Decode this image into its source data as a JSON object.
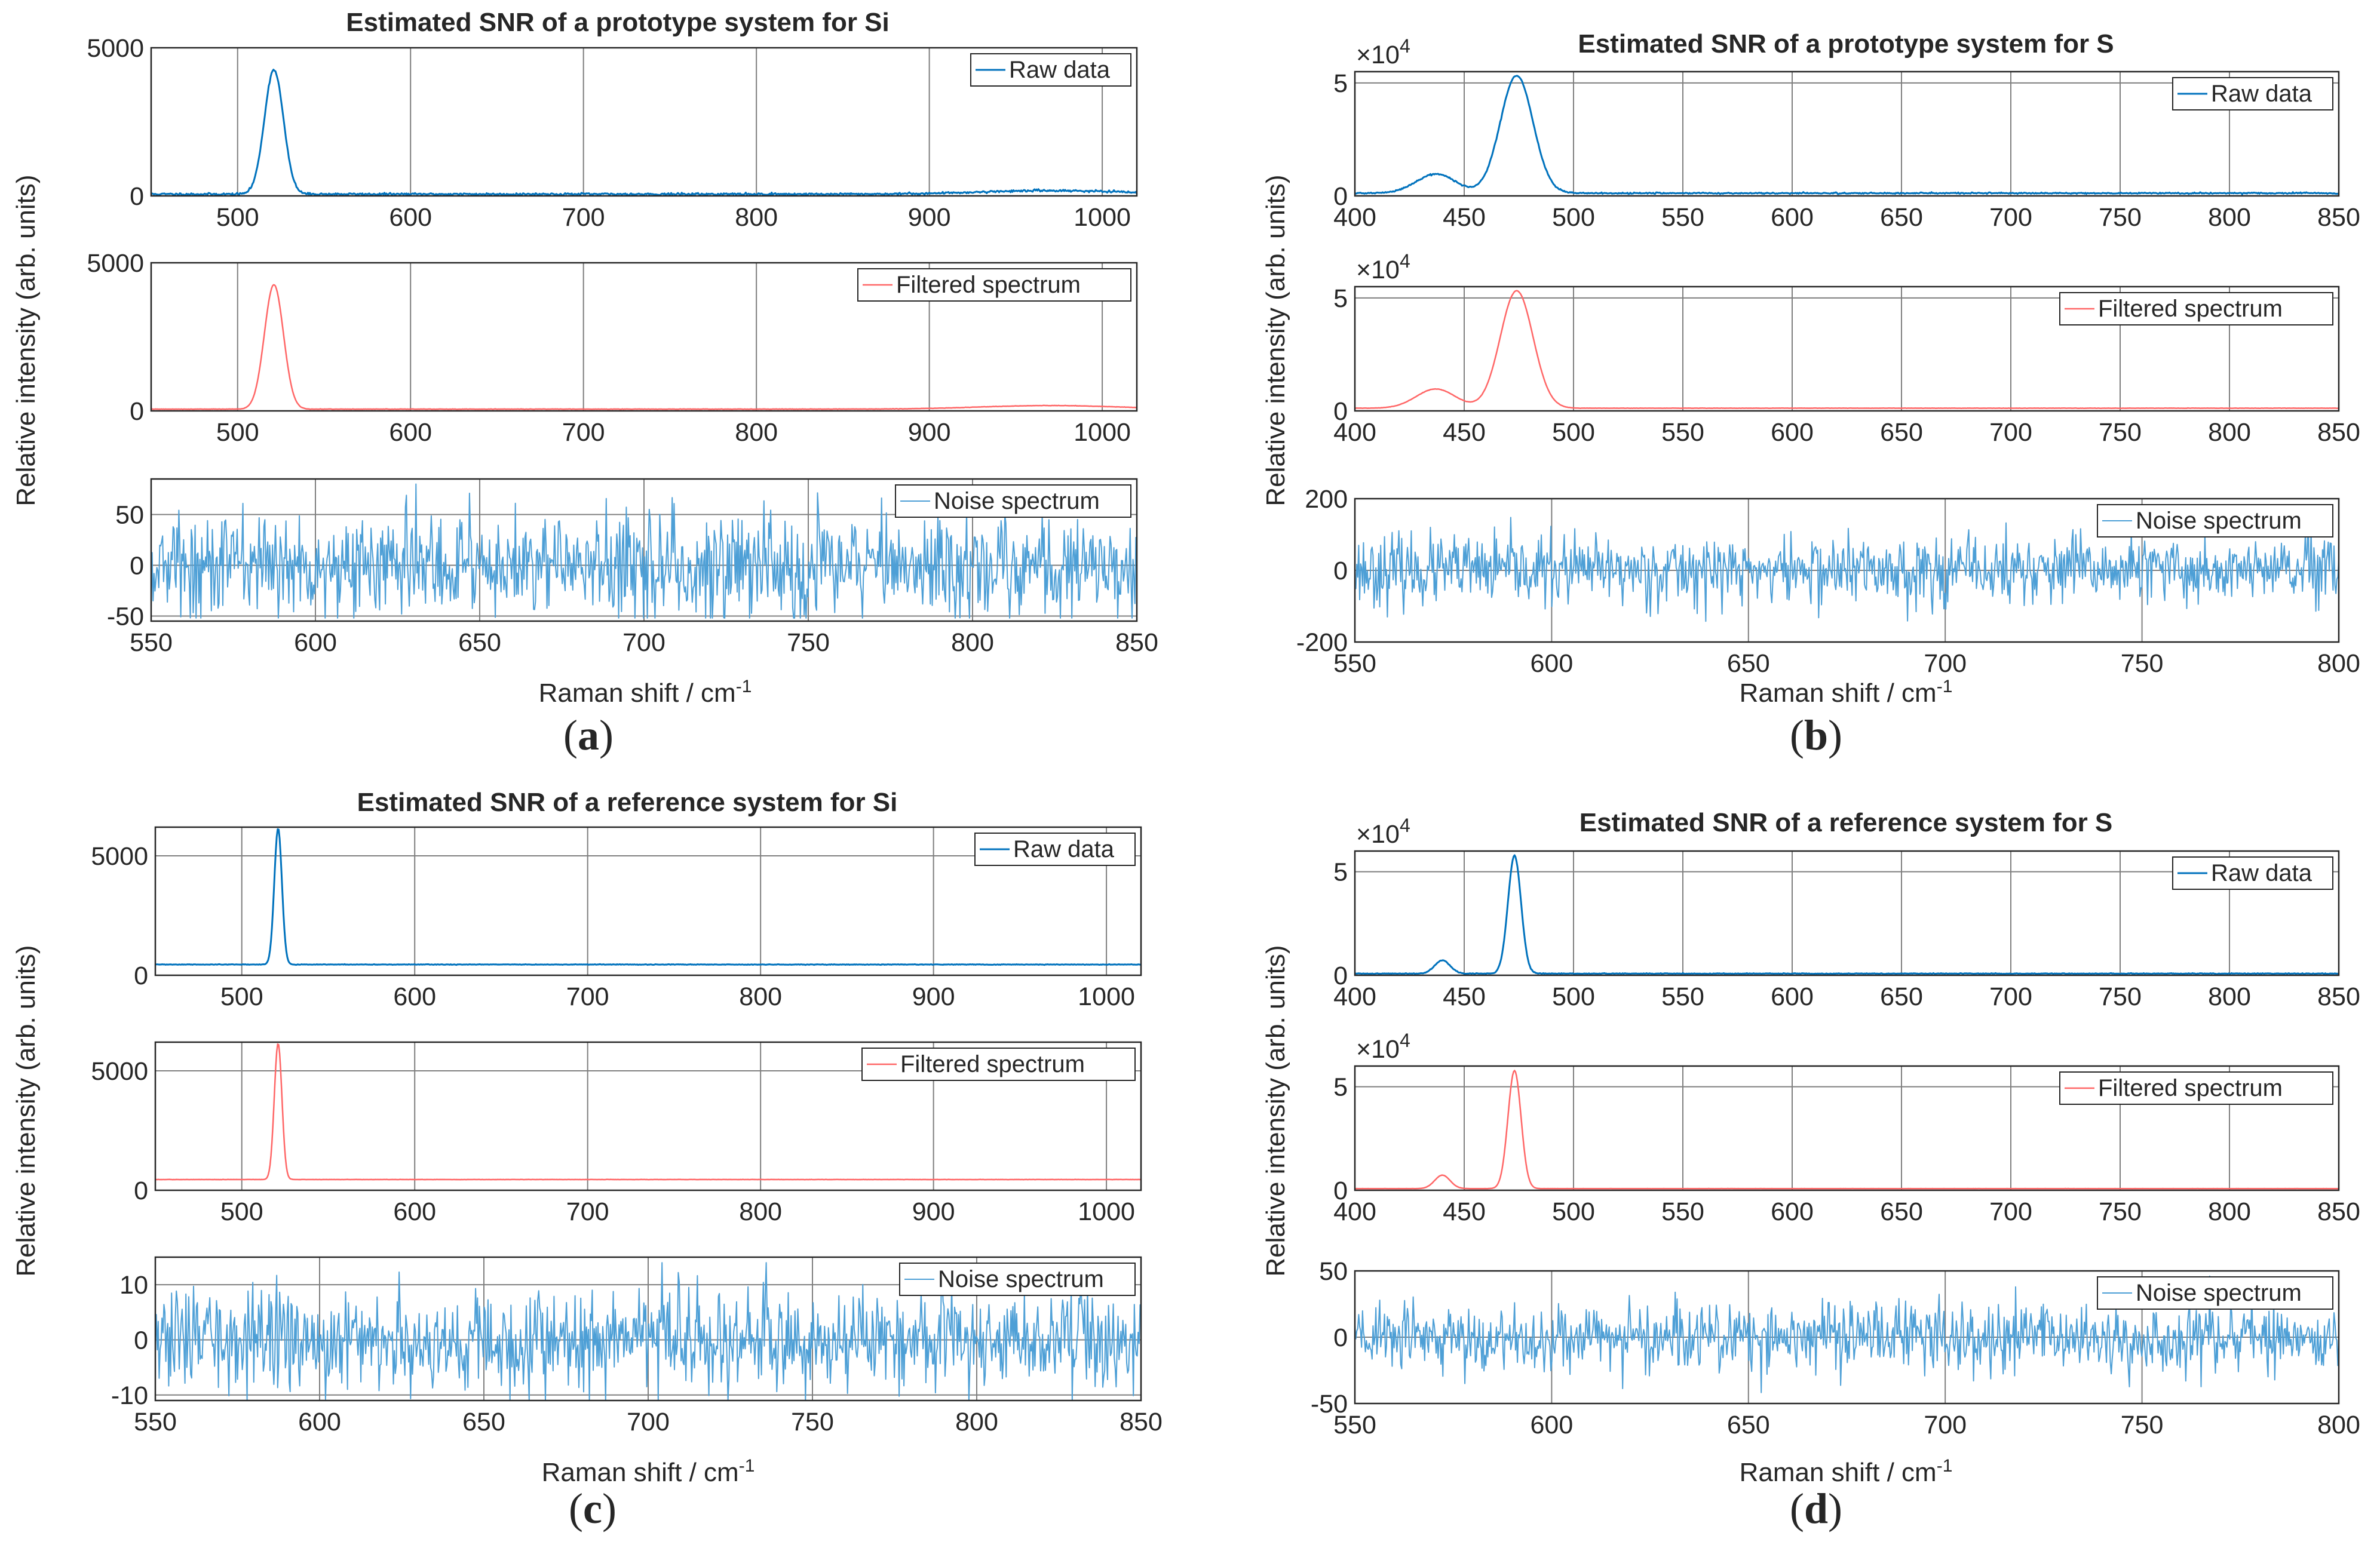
{
  "chart_data": [
    {
      "panel": "(a)",
      "panel_letter": "a",
      "title": "Estimated SNR of a prototype system for Si",
      "ylabel": "Relative intensity (arb. units)",
      "xlabel": "Raman shift / cm",
      "xlabel_sup": "-1",
      "subplots": [
        {
          "type": "line",
          "legend": "Raw data",
          "color": "#0072BD",
          "line_width": 3,
          "x_range": [
            450,
            1020
          ],
          "y_range": [
            0,
            5000
          ],
          "x_ticks": [
            500,
            600,
            700,
            800,
            900,
            1000
          ],
          "y_ticks": [
            0,
            5000
          ],
          "y_exponent": null,
          "baseline": 60,
          "peaks": [
            [
              521,
              4200,
              5.5
            ],
            [
              970,
              120,
              40
            ]
          ],
          "noise_amp": 18,
          "seed": 11
        },
        {
          "type": "line",
          "legend": "Filtered spectrum",
          "color": "#FF6666",
          "line_width": 2.5,
          "x_range": [
            450,
            1020
          ],
          "y_range": [
            0,
            5000
          ],
          "x_ticks": [
            500,
            600,
            700,
            800,
            900,
            1000
          ],
          "y_ticks": [
            0,
            5000
          ],
          "y_exponent": null,
          "baseline": 60,
          "peaks": [
            [
              521,
              4200,
              5.5
            ],
            [
              970,
              120,
              40
            ]
          ],
          "noise_amp": 3,
          "seed": 12
        },
        {
          "type": "line",
          "legend": "Noise spectrum",
          "color": "#4D9FD6",
          "line_width": 2,
          "x_range": [
            550,
            850
          ],
          "y_range": [
            -55,
            85
          ],
          "x_ticks": [
            550,
            600,
            650,
            700,
            750,
            800,
            850
          ],
          "y_ticks": [
            -50,
            0,
            50
          ],
          "y_exponent": null,
          "baseline": 0,
          "peaks": [],
          "noise_amp": 26,
          "noise_clip": [
            -52,
            80
          ],
          "seed": 13
        }
      ]
    },
    {
      "panel": "(b)",
      "panel_letter": "b",
      "title": "Estimated SNR of a prototype system for S",
      "ylabel": "Relative intensity (arb. units)",
      "xlabel": "Raman shift / cm",
      "xlabel_sup": "-1",
      "subplots": [
        {
          "type": "line",
          "legend": "Raw data",
          "color": "#0072BD",
          "line_width": 3,
          "x_range": [
            400,
            850
          ],
          "y_range": [
            0,
            55000
          ],
          "x_ticks": [
            400,
            450,
            500,
            550,
            600,
            650,
            700,
            750,
            800,
            850
          ],
          "y_ticks": [
            0,
            50000
          ],
          "y_exponent": 4,
          "exponent_label": "×10",
          "exponent_value": "4",
          "baseline": 1200,
          "peaks": [
            [
              437,
              8500,
              9
            ],
            [
              474,
              52000,
              7.5
            ]
          ],
          "noise_amp": 150,
          "seed": 21
        },
        {
          "type": "line",
          "legend": "Filtered spectrum",
          "color": "#FF6666",
          "line_width": 2.5,
          "x_range": [
            400,
            850
          ],
          "y_range": [
            0,
            55000
          ],
          "x_ticks": [
            400,
            450,
            500,
            550,
            600,
            650,
            700,
            750,
            800,
            850
          ],
          "y_ticks": [
            0,
            50000
          ],
          "y_exponent": 4,
          "exponent_label": "×10",
          "exponent_value": "4",
          "baseline": 1200,
          "peaks": [
            [
              437,
              8500,
              9
            ],
            [
              474,
              52000,
              7.5
            ]
          ],
          "noise_amp": 30,
          "seed": 22
        },
        {
          "type": "line",
          "legend": "Noise spectrum",
          "color": "#4D9FD6",
          "line_width": 2,
          "x_range": [
            550,
            800
          ],
          "y_range": [
            -200,
            200
          ],
          "x_ticks": [
            550,
            600,
            650,
            700,
            750,
            800
          ],
          "y_ticks": [
            -200,
            0,
            200
          ],
          "y_exponent": null,
          "baseline": 0,
          "peaks": [],
          "noise_amp": 48,
          "noise_clip": [
            -150,
            180
          ],
          "seed": 23
        }
      ]
    },
    {
      "panel": "(c)",
      "panel_letter": "c",
      "title": "Estimated SNR of a reference system for Si",
      "ylabel": "Relative intensity (arb. units)",
      "xlabel": "Raman shift / cm",
      "xlabel_sup": "-1",
      "subplots": [
        {
          "type": "line",
          "legend": "Raw data",
          "color": "#0072BD",
          "line_width": 3,
          "x_range": [
            450,
            1020
          ],
          "y_range": [
            0,
            6200
          ],
          "x_ticks": [
            500,
            600,
            700,
            800,
            900,
            1000
          ],
          "y_ticks": [
            0,
            5000
          ],
          "y_exponent": null,
          "baseline": 450,
          "peaks": [
            [
              521,
              5700,
              2.2
            ]
          ],
          "noise_amp": 6,
          "seed": 31
        },
        {
          "type": "line",
          "legend": "Filtered spectrum",
          "color": "#FF6666",
          "line_width": 2.5,
          "x_range": [
            450,
            1020
          ],
          "y_range": [
            0,
            6200
          ],
          "x_ticks": [
            500,
            600,
            700,
            800,
            900,
            1000
          ],
          "y_ticks": [
            0,
            5000
          ],
          "y_exponent": null,
          "baseline": 450,
          "peaks": [
            [
              521,
              5700,
              2.2
            ]
          ],
          "noise_amp": 2,
          "seed": 32
        },
        {
          "type": "line",
          "legend": "Noise spectrum",
          "color": "#4D9FD6",
          "line_width": 2,
          "x_range": [
            550,
            850
          ],
          "y_range": [
            -11,
            15
          ],
          "x_ticks": [
            550,
            600,
            650,
            700,
            750,
            800,
            850
          ],
          "y_ticks": [
            -10,
            0,
            10
          ],
          "y_exponent": null,
          "baseline": 0,
          "peaks": [],
          "noise_amp": 4.5,
          "noise_clip": [
            -11,
            14
          ],
          "seed": 33
        }
      ]
    },
    {
      "panel": "(d)",
      "panel_letter": "d",
      "title": "Estimated SNR of a reference system for S",
      "ylabel": "Relative intensity (arb. units)",
      "xlabel": "Raman shift / cm",
      "xlabel_sup": "-1",
      "subplots": [
        {
          "type": "line",
          "legend": "Raw data",
          "color": "#0072BD",
          "line_width": 3,
          "x_range": [
            400,
            850
          ],
          "y_range": [
            0,
            60000
          ],
          "x_ticks": [
            400,
            450,
            500,
            550,
            600,
            650,
            700,
            750,
            800,
            850
          ],
          "y_ticks": [
            0,
            50000
          ],
          "y_exponent": 4,
          "exponent_label": "×10",
          "exponent_value": "4",
          "baseline": 800,
          "peaks": [
            [
              440,
              6500,
              3.5
            ],
            [
              473,
              57000,
              3
            ]
          ],
          "noise_amp": 100,
          "seed": 41
        },
        {
          "type": "line",
          "legend": "Filtered spectrum",
          "color": "#FF6666",
          "line_width": 2.5,
          "x_range": [
            400,
            850
          ],
          "y_range": [
            0,
            60000
          ],
          "x_ticks": [
            400,
            450,
            500,
            550,
            600,
            650,
            700,
            750,
            800,
            850
          ],
          "y_ticks": [
            0,
            50000
          ],
          "y_exponent": 4,
          "exponent_label": "×10",
          "exponent_value": "4",
          "baseline": 800,
          "peaks": [
            [
              440,
              6500,
              3.5
            ],
            [
              473,
              57000,
              3
            ]
          ],
          "noise_amp": 20,
          "seed": 42
        },
        {
          "type": "line",
          "legend": "Noise spectrum",
          "color": "#4D9FD6",
          "line_width": 2,
          "x_range": [
            550,
            800
          ],
          "y_range": [
            -50,
            50
          ],
          "x_ticks": [
            550,
            600,
            650,
            700,
            750,
            800
          ],
          "y_ticks": [
            -50,
            0,
            50
          ],
          "y_exponent": null,
          "baseline": 0,
          "peaks": [],
          "noise_amp": 13,
          "noise_clip": [
            -48,
            46
          ],
          "seed": 43
        }
      ]
    }
  ]
}
